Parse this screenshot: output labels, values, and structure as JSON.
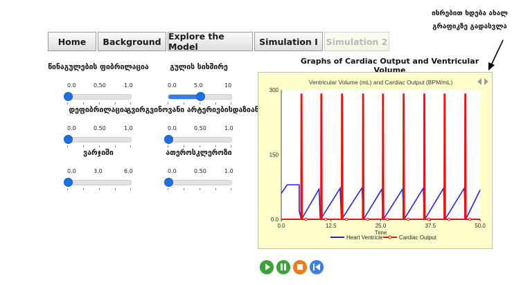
{
  "nav": {
    "tabs": [
      {
        "label": "Home"
      },
      {
        "label": "Background"
      },
      {
        "label": "Explore the Model"
      },
      {
        "label": "Simulation I"
      },
      {
        "label": "Simulation 2"
      }
    ]
  },
  "hint": {
    "line1": "ისრებით ხდება ახალ",
    "line2": "გრაფიკზე გადასვლა"
  },
  "chart_title": "Graphs of Cardiac Output and Ventricular Volume",
  "sliders": [
    {
      "label": "წინაგულების ფიბრილაცია",
      "ticks": [
        "0.0",
        "0.50",
        "1.0"
      ],
      "value": 0
    },
    {
      "label": "გულის სიხშირე",
      "ticks": [
        "0.0",
        "5.0",
        "10"
      ],
      "value": 0.5
    },
    {
      "label": "დეფიბრილაცია",
      "ticks": [
        "0.0",
        "0.50",
        "1.0"
      ],
      "value": 0
    },
    {
      "label": "გვირგვინოვანი არტერიებისდაზიანება",
      "ticks": [
        "0.0",
        "0.50",
        "1.0"
      ],
      "value": 0
    },
    {
      "label": "ვარჯიში",
      "ticks": [
        "0.0",
        "3.0",
        "6.0"
      ],
      "value": 0
    },
    {
      "label": "ათეროსკლეროზი",
      "ticks": [
        "0.0",
        "0.50",
        "1.0"
      ],
      "value": 0
    }
  ],
  "colors": {
    "accent": "#1e6fe0",
    "chart_bg": "#ffffcc",
    "heart_ventricle": "#1f1fd6",
    "cardiac_output": "#ee1111"
  },
  "controls": [
    {
      "icon": "play-icon",
      "color": "#3aa336"
    },
    {
      "icon": "pause-icon",
      "color": "#3aa336"
    },
    {
      "icon": "stop-icon",
      "color": "#f07b1a"
    },
    {
      "icon": "rewind-icon",
      "color": "#3a7fd9"
    }
  ],
  "chart_data": {
    "type": "line",
    "title": "Ventricular Volume (mL) and Cardiac Output (BPM/mL)",
    "xlabel": "Time",
    "ylabel": "",
    "xlim": [
      0,
      50
    ],
    "ylim": [
      0,
      300
    ],
    "x_ticks": [
      "0.0",
      "12.5",
      "25.0",
      "37.5",
      "50.0"
    ],
    "y_ticks": [
      "0.0",
      "150",
      "300"
    ],
    "legend": "bottom",
    "grid": false,
    "series": [
      {
        "name": "Heart Ventricle",
        "x": [
          0,
          1.5,
          4.5,
          4.5,
          5.0,
          5.1,
          9.5,
          9.8,
          9.9,
          14.8,
          15.1,
          15.2,
          20.3,
          20.6,
          20.7,
          25.3,
          25.6,
          25.7,
          30.5,
          30.8,
          30.9,
          35.7,
          36.0,
          36.1,
          40.8,
          41.1,
          41.2,
          46.0,
          46.3,
          46.4,
          50
        ],
        "y": [
          60,
          80,
          80,
          20,
          0,
          0,
          70,
          0,
          0,
          72,
          0,
          0,
          73,
          0,
          0,
          70,
          0,
          0,
          70,
          0,
          0,
          72,
          0,
          0,
          72,
          0,
          0,
          72,
          0,
          0,
          68
        ]
      },
      {
        "name": "Cardiac Output",
        "spikes": [
          5.0,
          10.0,
          15.2,
          20.5,
          25.5,
          30.7,
          35.9,
          41.0,
          46.2
        ],
        "peak": 290,
        "baseline": 0
      }
    ]
  }
}
